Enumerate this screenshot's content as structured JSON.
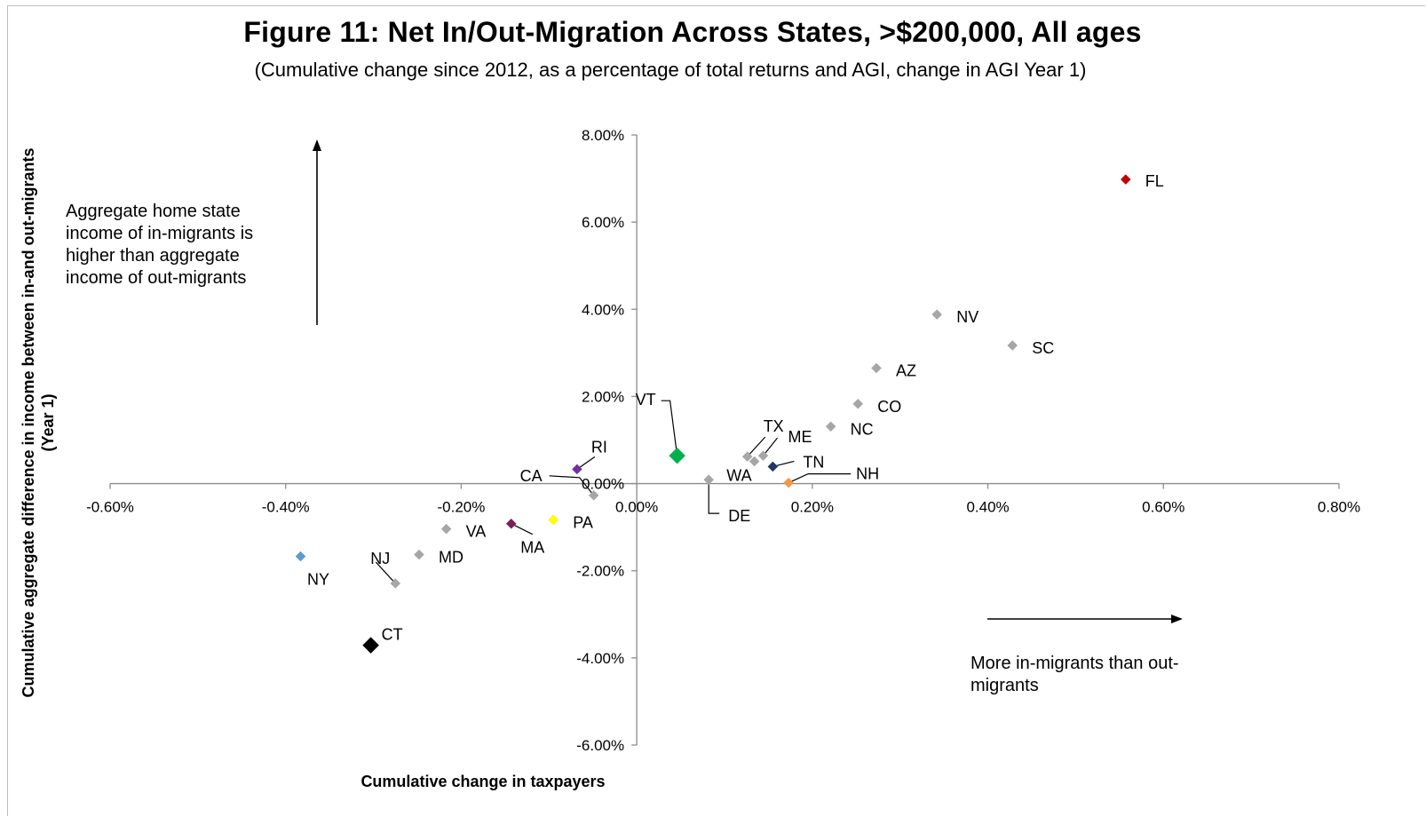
{
  "chart_data": {
    "type": "scatter",
    "title": "Figure 11: Net In/Out-Migration  Across States, >$200,000, All ages",
    "subtitle": "(Cumulative change since 2012, as a percentage of total returns and AGI, change in AGI Year 1)",
    "xlabel": "Cumulative change in taxpayers",
    "ylabel": "Cumulative aggregate difference in income between in-and out-migrants (Year 1)",
    "xlim": [
      -0.006,
      0.008
    ],
    "ylim": [
      -0.06,
      0.08
    ],
    "x_ticks": [
      -0.006,
      -0.004,
      -0.002,
      0.0,
      0.002,
      0.004,
      0.006,
      0.008
    ],
    "x_tick_labels": [
      "-0.60%",
      "-0.40%",
      "-0.20%",
      "0.00%",
      "0.20%",
      "0.40%",
      "0.60%",
      "0.80%"
    ],
    "y_ticks": [
      0.08,
      0.06,
      0.04,
      0.02,
      0.0,
      -0.02,
      -0.04,
      -0.06
    ],
    "y_tick_labels": [
      "8.00%",
      "6.00%",
      "4.00%",
      "2.00%",
      "0.00%",
      "-2.00%",
      "-4.00%",
      "-6.00%"
    ],
    "grid": false,
    "points": [
      {
        "label": "FL",
        "x": 0.00557,
        "y": 0.0698,
        "color": "#c00000"
      },
      {
        "label": "NV",
        "x": 0.00342,
        "y": 0.0388,
        "color": "#a6a6a6"
      },
      {
        "label": "SC",
        "x": 0.00428,
        "y": 0.0317,
        "color": "#a6a6a6"
      },
      {
        "label": "AZ",
        "x": 0.00273,
        "y": 0.0265,
        "color": "#a6a6a6"
      },
      {
        "label": "CO",
        "x": 0.00252,
        "y": 0.0183,
        "color": "#a6a6a6"
      },
      {
        "label": "NC",
        "x": 0.00221,
        "y": 0.0131,
        "color": "#a6a6a6"
      },
      {
        "label": "TX",
        "x": 0.00126,
        "y": 0.0062,
        "color": "#a6a6a6"
      },
      {
        "label": "ME",
        "x": 0.00144,
        "y": 0.0064,
        "color": "#a6a6a6"
      },
      {
        "label": "WA",
        "x": 0.00134,
        "y": 0.0051,
        "color": "#a6a6a6"
      },
      {
        "label": "TN",
        "x": 0.00155,
        "y": 0.0039,
        "color": "#1f3864"
      },
      {
        "label": "NH",
        "x": 0.00173,
        "y": 0.0002,
        "color": "#f79646"
      },
      {
        "label": "DE",
        "x": 0.00082,
        "y": 0.0009,
        "color": "#a6a6a6"
      },
      {
        "label": "VT",
        "x": 0.00046,
        "y": 0.0064,
        "color": "#00b050",
        "large": true
      },
      {
        "label": "RI",
        "x": -0.00068,
        "y": 0.0033,
        "color": "#7030a0"
      },
      {
        "label": "CA",
        "x": -0.00049,
        "y": -0.0027,
        "color": "#a6a6a6"
      },
      {
        "label": "PA",
        "x": -0.00095,
        "y": -0.0083,
        "color": "#ffff00"
      },
      {
        "label": "MA",
        "x": -0.00143,
        "y": -0.0092,
        "color": "#7b1f57"
      },
      {
        "label": "VA",
        "x": -0.00217,
        "y": -0.0104,
        "color": "#a6a6a6"
      },
      {
        "label": "MD",
        "x": -0.00248,
        "y": -0.0163,
        "color": "#a6a6a6"
      },
      {
        "label": "NJ",
        "x": -0.00275,
        "y": -0.0229,
        "color": "#a6a6a6"
      },
      {
        "label": "NY",
        "x": -0.00383,
        "y": -0.0167,
        "color": "#5b9bd5"
      },
      {
        "label": "CT",
        "x": -0.00303,
        "y": -0.0371,
        "color": "#000000",
        "large": true
      }
    ]
  },
  "annotations": {
    "top_left_lines": [
      "Aggregate  home state",
      "income of in-migrants is",
      "higher than aggregate",
      "income of out-migrants"
    ],
    "bottom_right_lines": [
      "More in-migrants than out-",
      "migrants"
    ]
  }
}
